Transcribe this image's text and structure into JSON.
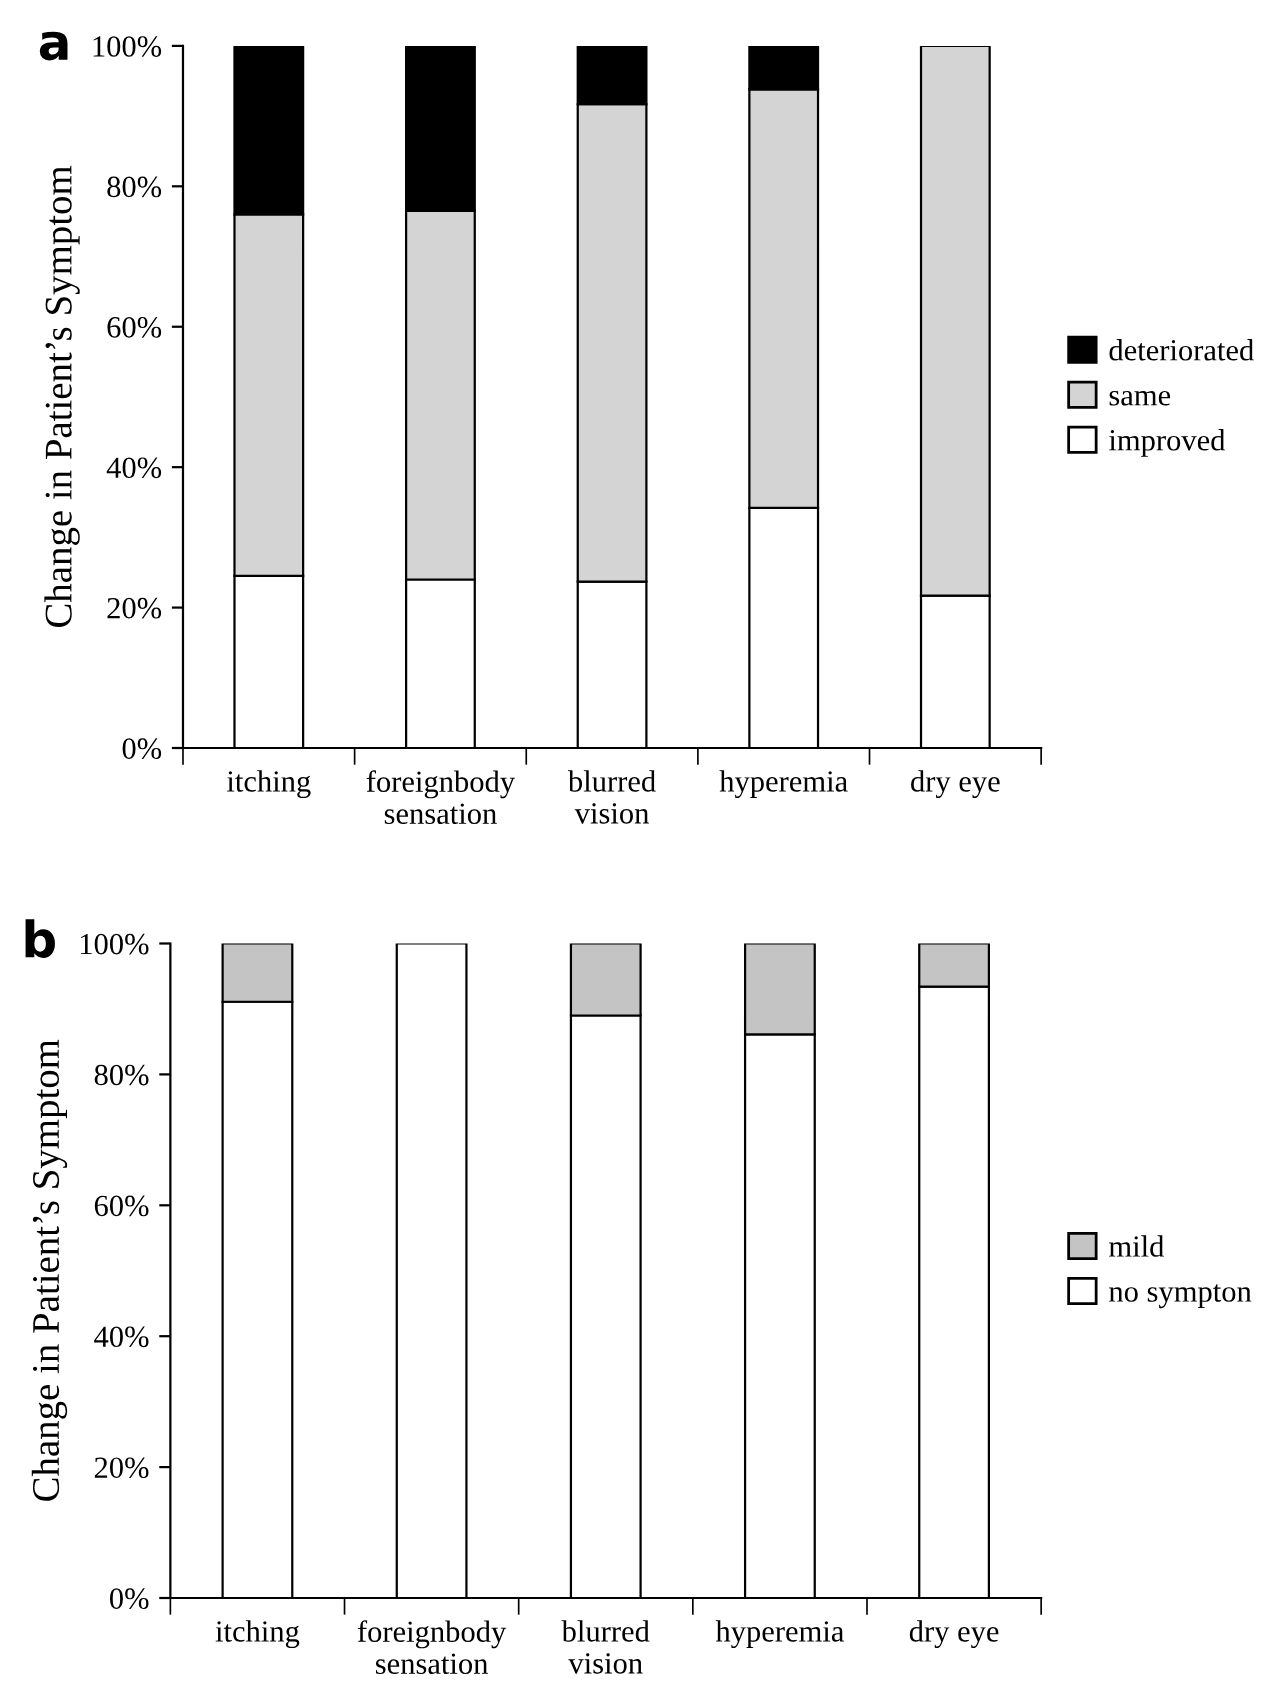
{
  "chart_data": [
    {
      "type": "bar",
      "title": "a",
      "ylabel": "Change in Patient’s Symptom",
      "stacked": true,
      "legend": "right",
      "grid": false,
      "categories": [
        "itching",
        "foreignbody\nsensation",
        "blurred\nvision",
        "hyperemia",
        "dry eye"
      ],
      "series": [
        {
          "name": "improved",
          "color": "#ffffff",
          "values": [
            24.5,
            24,
            23.7,
            34.2,
            21.7
          ]
        },
        {
          "name": "same",
          "color": "#d4d4d4",
          "values": [
            51.5,
            52.5,
            68,
            59.6,
            78.3
          ]
        },
        {
          "name": "deteriorated",
          "color": "#000000",
          "values": [
            24,
            23.5,
            8.3,
            6.2,
            null
          ]
        }
      ],
      "ylim": [
        0,
        100
      ],
      "yticks": [
        {
          "value": 0,
          "label": "0%"
        },
        {
          "value": 20,
          "label": "20%"
        },
        {
          "value": 40,
          "label": "40%"
        },
        {
          "value": 60,
          "label": "60%"
        },
        {
          "value": 80,
          "label": "80%"
        },
        {
          "value": 100,
          "label": "100%"
        }
      ]
    },
    {
      "type": "bar",
      "title": "b",
      "ylabel": "Change in Patient’s Symptom",
      "stacked": true,
      "legend": "right",
      "grid": false,
      "categories": [
        "itching",
        "foreignbody\nsensation",
        "blurred\nvision",
        "hyperemia",
        "dry eye"
      ],
      "series": [
        {
          "name": "no sympton",
          "color": "#ffffff",
          "values": [
            91.1,
            100,
            89,
            86.1,
            93.4
          ]
        },
        {
          "name": "mild",
          "color": "#c4c4c4",
          "values": [
            8.9,
            null,
            11,
            13.9,
            6.6
          ]
        }
      ],
      "ylim": [
        0,
        100
      ],
      "yticks": [
        {
          "value": 0,
          "label": "0%"
        },
        {
          "value": 20,
          "label": "20%"
        },
        {
          "value": 40,
          "label": "40%"
        },
        {
          "value": 60,
          "label": "60%"
        },
        {
          "value": 80,
          "label": "80%"
        },
        {
          "value": 100,
          "label": "100%"
        }
      ]
    }
  ]
}
